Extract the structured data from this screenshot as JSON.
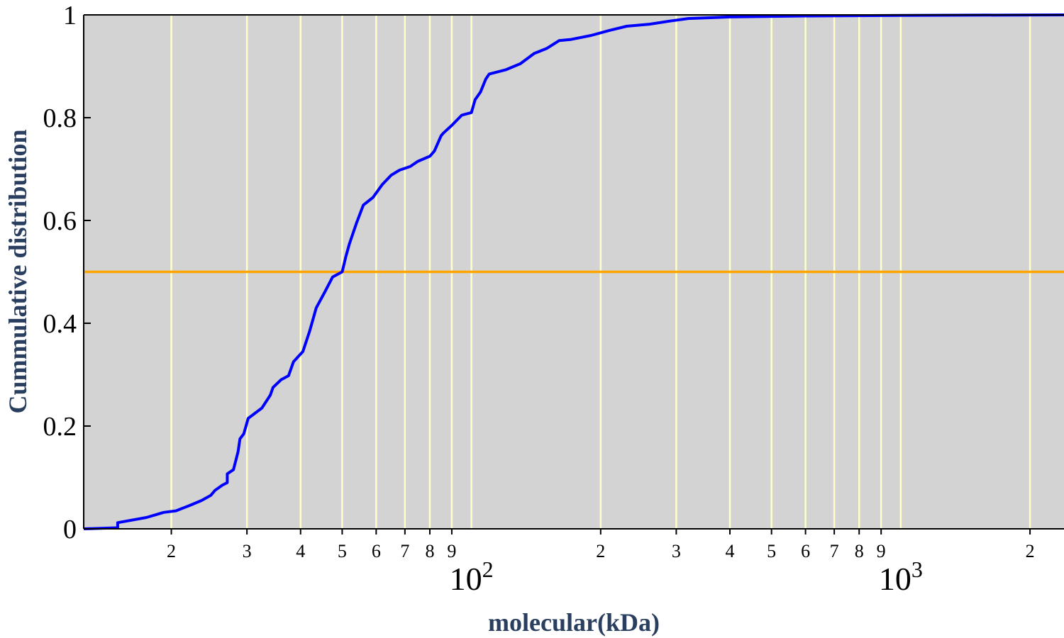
{
  "chart_data": {
    "type": "line",
    "title": "",
    "xlabel": "molecular(kDa)",
    "ylabel": "Cummulative distribution",
    "x_scale": "log",
    "xlim": [
      12.5,
      2400
    ],
    "ylim": [
      0,
      1
    ],
    "y_ticks": [
      "0",
      "0.2",
      "0.4",
      "0.6",
      "0.8",
      "1"
    ],
    "x_minor_tick_values": [
      20,
      30,
      40,
      50,
      60,
      70,
      80,
      90,
      200,
      300,
      400,
      500,
      600,
      700,
      800,
      900,
      2000
    ],
    "x_minor_tick_labels": [
      "2",
      "3",
      "4",
      "5",
      "6",
      "7",
      "8",
      "9",
      "2",
      "3",
      "4",
      "5",
      "6",
      "7",
      "8",
      "9",
      "2"
    ],
    "x_major_ticks": [
      {
        "value": 100,
        "base": "10",
        "exp": "2"
      },
      {
        "value": 1000,
        "base": "10",
        "exp": "3"
      }
    ],
    "grid": "vertical",
    "colors": {
      "background": "#d3d3d3",
      "grid": "#ffffcc",
      "series": "#0000ff",
      "reference_line": "#ffa500",
      "label": "#2a3f5f"
    },
    "reference_line": {
      "y": 0.5
    },
    "series": [
      {
        "x": [
          12.5,
          15.0,
          15.0,
          17.5,
          18.5,
          19.2,
          20.5,
          22.0,
          23.5,
          24.7,
          25.3,
          26.3,
          27.0,
          27.0,
          27.9,
          28.6,
          28.9,
          29.5,
          30.2,
          32.5,
          34.0,
          34.5,
          36.0,
          37.5,
          38.5,
          40.5,
          42.0,
          43.5,
          45.5,
          47.5,
          50.0,
          51.0,
          52.0,
          54.0,
          56.0,
          58.0,
          59.0,
          62.0,
          65.0,
          68.0,
          72.0,
          75.0,
          80.0,
          82.0,
          85.0,
          86.0,
          90.0,
          95.0,
          100.0,
          102.0,
          105.0,
          108.0,
          110.0,
          120.0,
          130.0,
          140.0,
          150.0,
          160.0,
          170.0,
          190.0,
          210.0,
          230.0,
          260.0,
          290.0,
          320.0,
          400.0,
          600.0,
          1000.0,
          2400.0
        ],
        "y": [
          0.0,
          0.002,
          0.012,
          0.022,
          0.028,
          0.032,
          0.035,
          0.045,
          0.055,
          0.065,
          0.075,
          0.085,
          0.09,
          0.107,
          0.115,
          0.15,
          0.175,
          0.185,
          0.215,
          0.235,
          0.26,
          0.275,
          0.29,
          0.298,
          0.325,
          0.345,
          0.385,
          0.43,
          0.46,
          0.49,
          0.5,
          0.53,
          0.555,
          0.595,
          0.63,
          0.64,
          0.645,
          0.67,
          0.688,
          0.698,
          0.705,
          0.715,
          0.725,
          0.735,
          0.765,
          0.77,
          0.785,
          0.805,
          0.81,
          0.835,
          0.85,
          0.875,
          0.885,
          0.893,
          0.905,
          0.925,
          0.935,
          0.95,
          0.952,
          0.96,
          0.97,
          0.978,
          0.982,
          0.988,
          0.993,
          0.996,
          0.998,
          0.999,
          1.0
        ]
      }
    ]
  }
}
